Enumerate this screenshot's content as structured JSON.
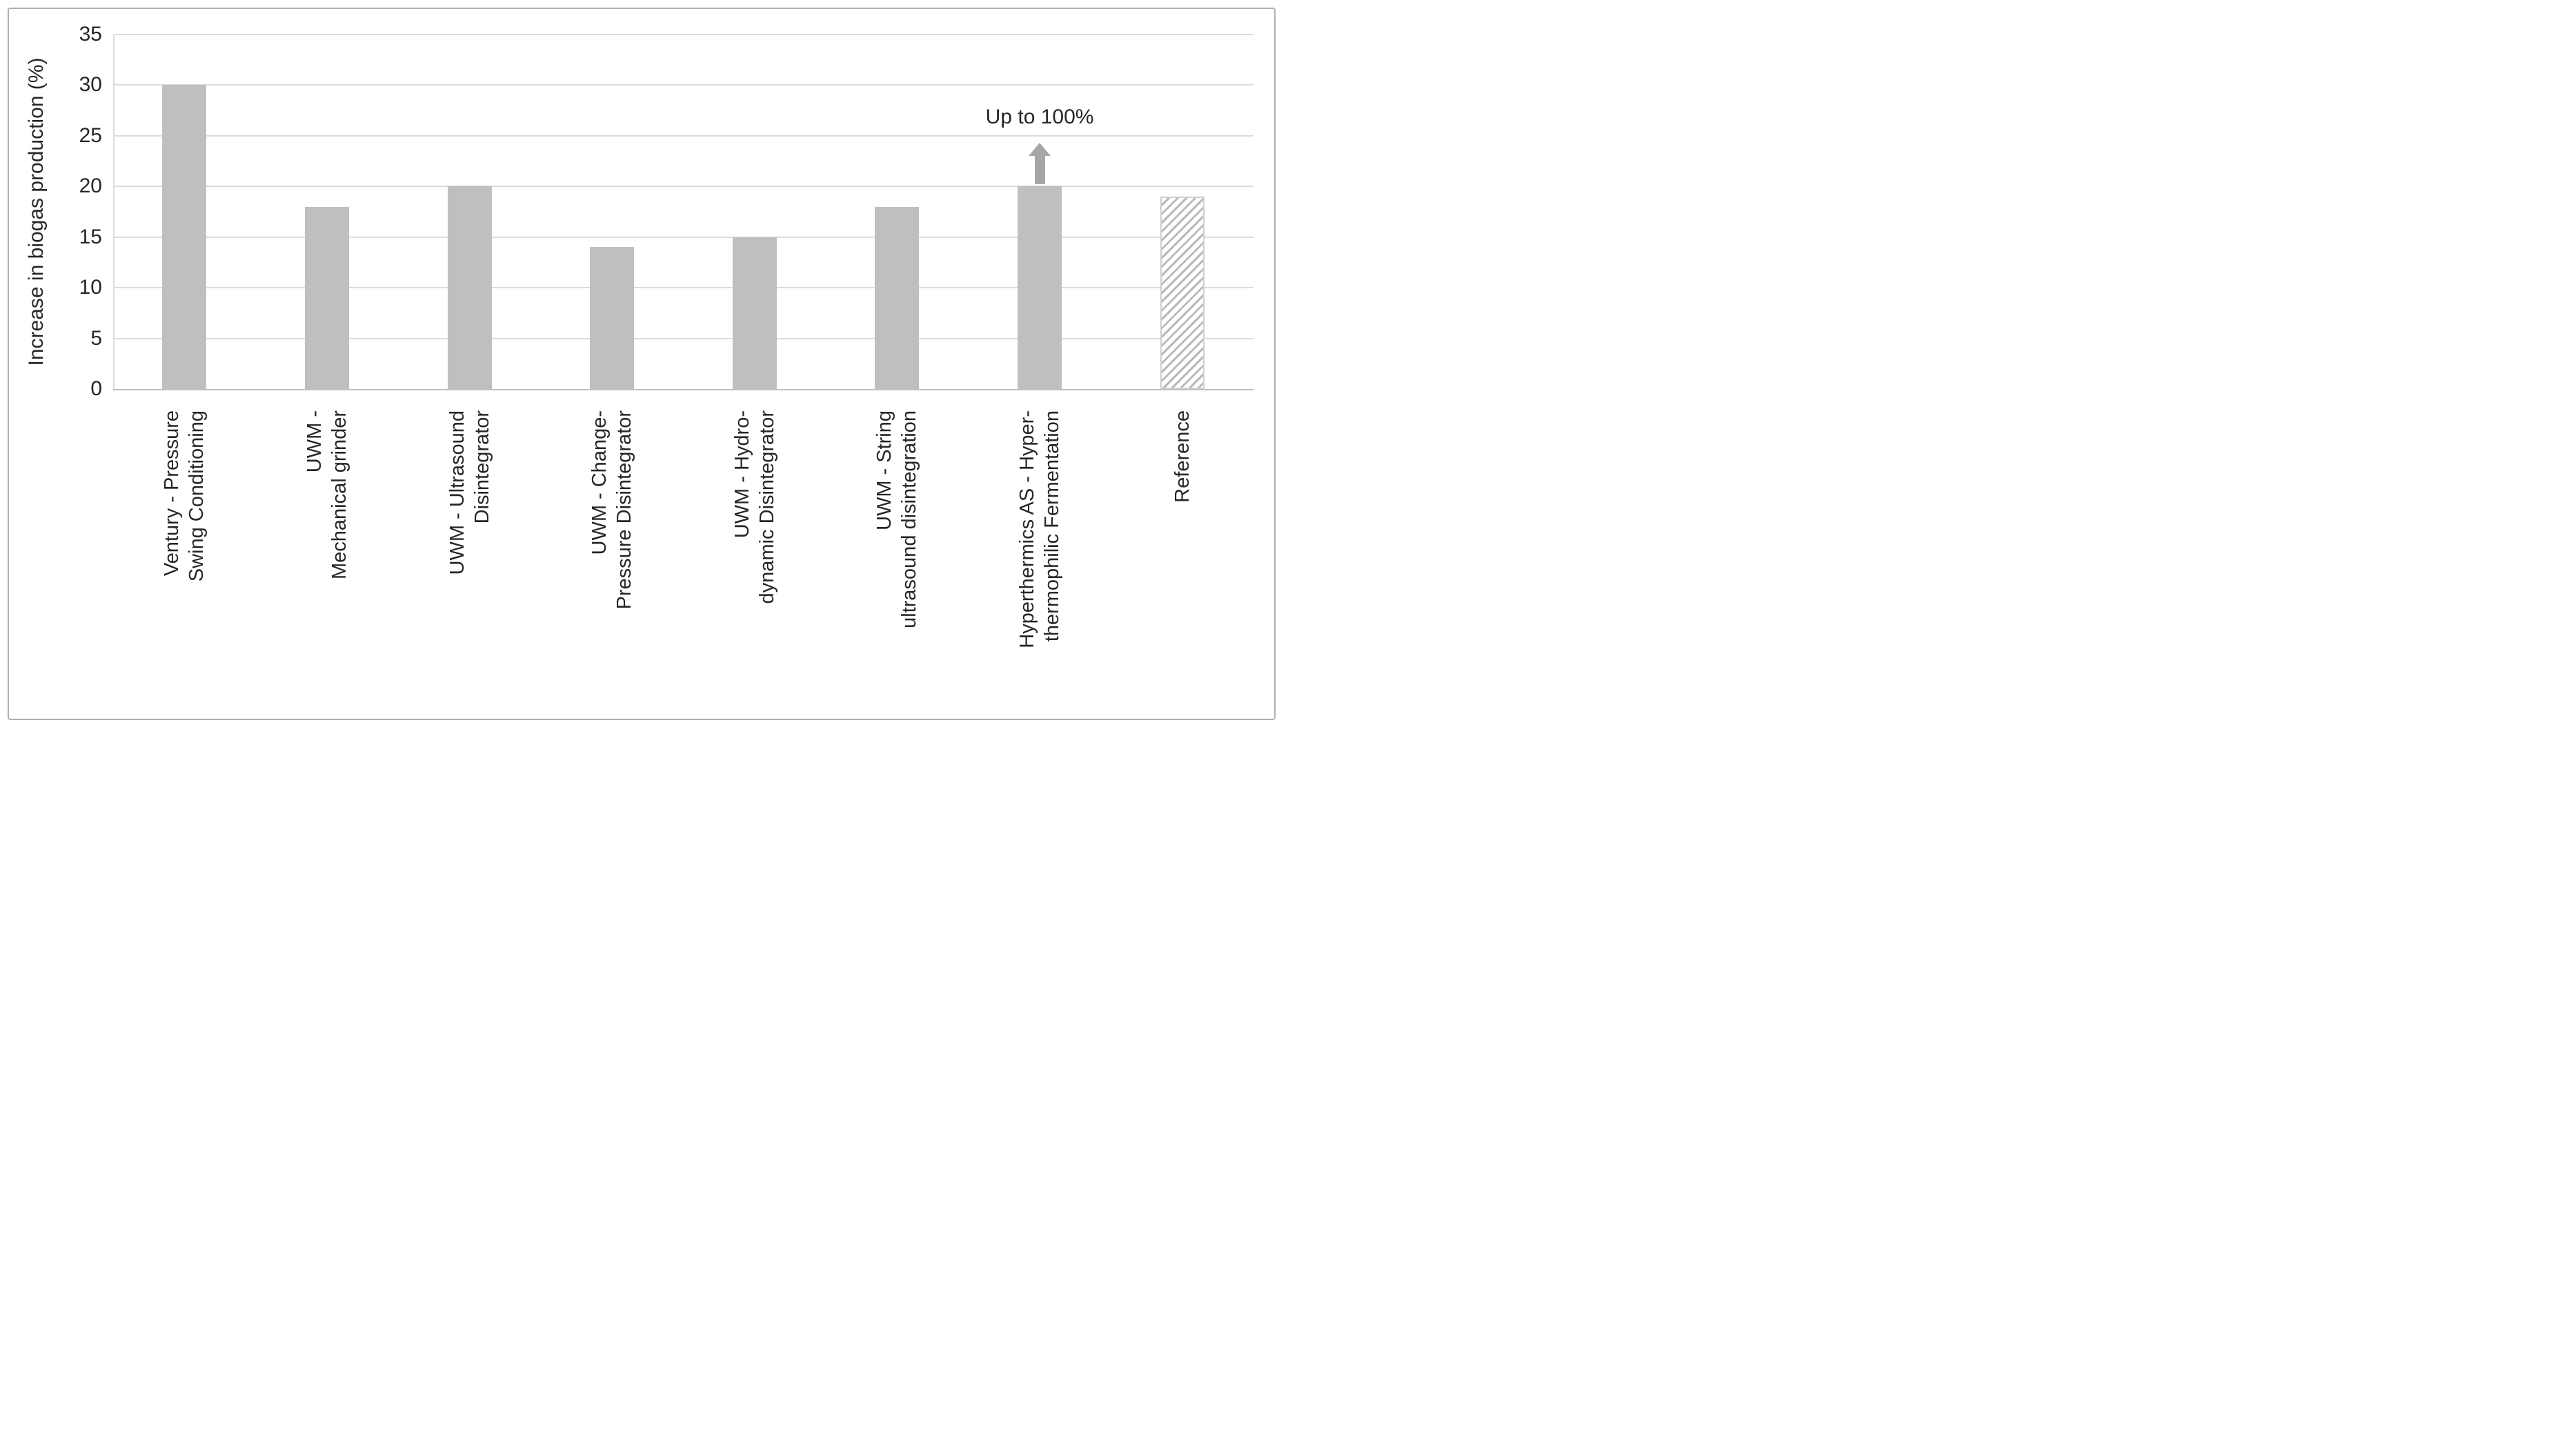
{
  "chart_data": {
    "type": "bar",
    "title": "",
    "ylabel": "Increase in biogas production (%)",
    "xlabel": "",
    "ylim": [
      0,
      35
    ],
    "yticks": [
      0,
      5,
      10,
      15,
      20,
      25,
      30,
      35
    ],
    "grid": "horizontal",
    "legend": "none",
    "categories": [
      "Ventury - Pressure\nSwing Conditioning",
      "UWM -\nMechanical grinder",
      "UWM - Ultrasound\nDisintegrator",
      "UWM - Change-\nPressure Disintegrator",
      "UWM - Hydro-\ndynamic Disintegrator",
      "UWM - String\nultrasound disintegration",
      "Hyperthermics AS - Hyper-\nthermophilic Fermentation",
      "Reference"
    ],
    "values": [
      30,
      18,
      20,
      14,
      15,
      18,
      20,
      19
    ],
    "bar_style": {
      "fill": "#bfbfbf",
      "reference_index": 7,
      "reference_fill": "#ffffff",
      "reference_hatch": "diagonal",
      "reference_hatch_color": "#b9b9b9",
      "reference_border": "#cfcfcf"
    },
    "annotation": {
      "text": "Up to 100%",
      "category_index": 6,
      "arrow": "up",
      "arrow_color": "#a6a6a6"
    },
    "colors": {
      "gridline": "#dcdcdc",
      "axis_line": "#c0c0c0",
      "text": "#262626",
      "frame_border": "#b0b0b0"
    }
  }
}
